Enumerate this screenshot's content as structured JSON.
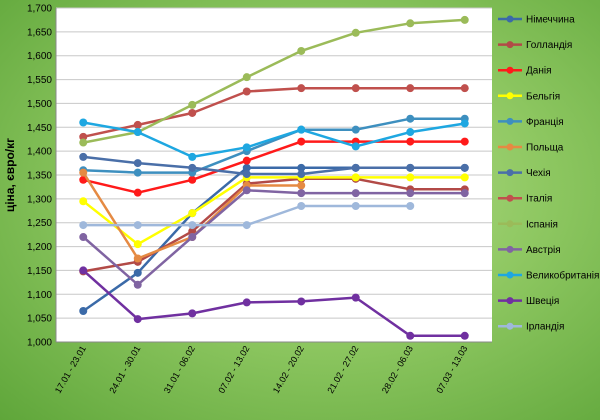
{
  "chart_data": {
    "type": "line",
    "title": "",
    "xlabel": "",
    "ylabel": "ціна, євро/кг",
    "ylim": [
      1.0,
      1.7
    ],
    "y_ticks": [
      "1,000",
      "1,050",
      "1,100",
      "1,150",
      "1,200",
      "1,250",
      "1,300",
      "1,350",
      "1,400",
      "1,450",
      "1,500",
      "1,550",
      "1,600",
      "1,650",
      "1,700"
    ],
    "grid": true,
    "legend_position": "right",
    "categories": [
      "17.01 - 23.01",
      "24.01 - 30.01",
      "31.01 - 06.02",
      "07.02 - 13.02",
      "14.02 - 20.02",
      "21.02 - 27.02",
      "28.02 - 06.03",
      "07.03 - 13.03"
    ],
    "series": [
      {
        "name": "Німеччина",
        "color": "#3b6aa8",
        "values": [
          1.065,
          1.145,
          1.27,
          1.365,
          1.365,
          1.365,
          1.365,
          1.365
        ]
      },
      {
        "name": "Голландія",
        "color": "#b24a47",
        "values": [
          1.148,
          1.168,
          1.232,
          1.332,
          1.342,
          1.342,
          1.32,
          1.32
        ]
      },
      {
        "name": "Данія",
        "color": "#ff1a1a",
        "values": [
          1.34,
          1.313,
          1.34,
          1.38,
          1.42,
          1.42,
          1.42,
          1.42
        ]
      },
      {
        "name": "Бельгія",
        "color": "#ffff00",
        "values": [
          1.295,
          1.205,
          1.27,
          1.345,
          1.345,
          1.345,
          1.345,
          1.345
        ]
      },
      {
        "name": "Франція",
        "color": "#3d8fbf",
        "values": [
          1.36,
          1.355,
          1.355,
          1.4,
          1.445,
          1.445,
          1.468,
          1.468
        ]
      },
      {
        "name": "Польща",
        "color": "#e58a43",
        "values": [
          1.355,
          1.175,
          1.22,
          1.328,
          1.328,
          null,
          null,
          null
        ]
      },
      {
        "name": "Чехія",
        "color": "#4a6fa8",
        "values": [
          1.388,
          1.375,
          1.365,
          1.352,
          1.352,
          1.365,
          1.365,
          1.365
        ]
      },
      {
        "name": "Італія",
        "color": "#c0504d",
        "values": [
          1.43,
          1.455,
          1.48,
          1.525,
          1.532,
          1.532,
          1.532,
          1.532
        ]
      },
      {
        "name": "Іспанія",
        "color": "#9bbb59",
        "values": [
          1.418,
          1.44,
          1.497,
          1.555,
          1.61,
          1.648,
          1.668,
          1.675
        ]
      },
      {
        "name": "Австрія",
        "color": "#8064a2",
        "values": [
          1.22,
          1.12,
          1.22,
          1.318,
          1.312,
          1.312,
          1.312,
          1.312
        ]
      },
      {
        "name": "Великобританія",
        "color": "#1ea7e1",
        "values": [
          1.46,
          1.44,
          1.388,
          1.408,
          1.445,
          1.41,
          1.44,
          1.458
        ]
      },
      {
        "name": "Швеція",
        "color": "#7030a0",
        "values": [
          1.15,
          1.048,
          1.06,
          1.083,
          1.085,
          1.093,
          1.013,
          1.013
        ]
      },
      {
        "name": "Ірландія",
        "color": "#9fb8db",
        "values": [
          1.245,
          1.245,
          1.245,
          1.245,
          1.285,
          1.285,
          1.285,
          null
        ]
      }
    ]
  }
}
